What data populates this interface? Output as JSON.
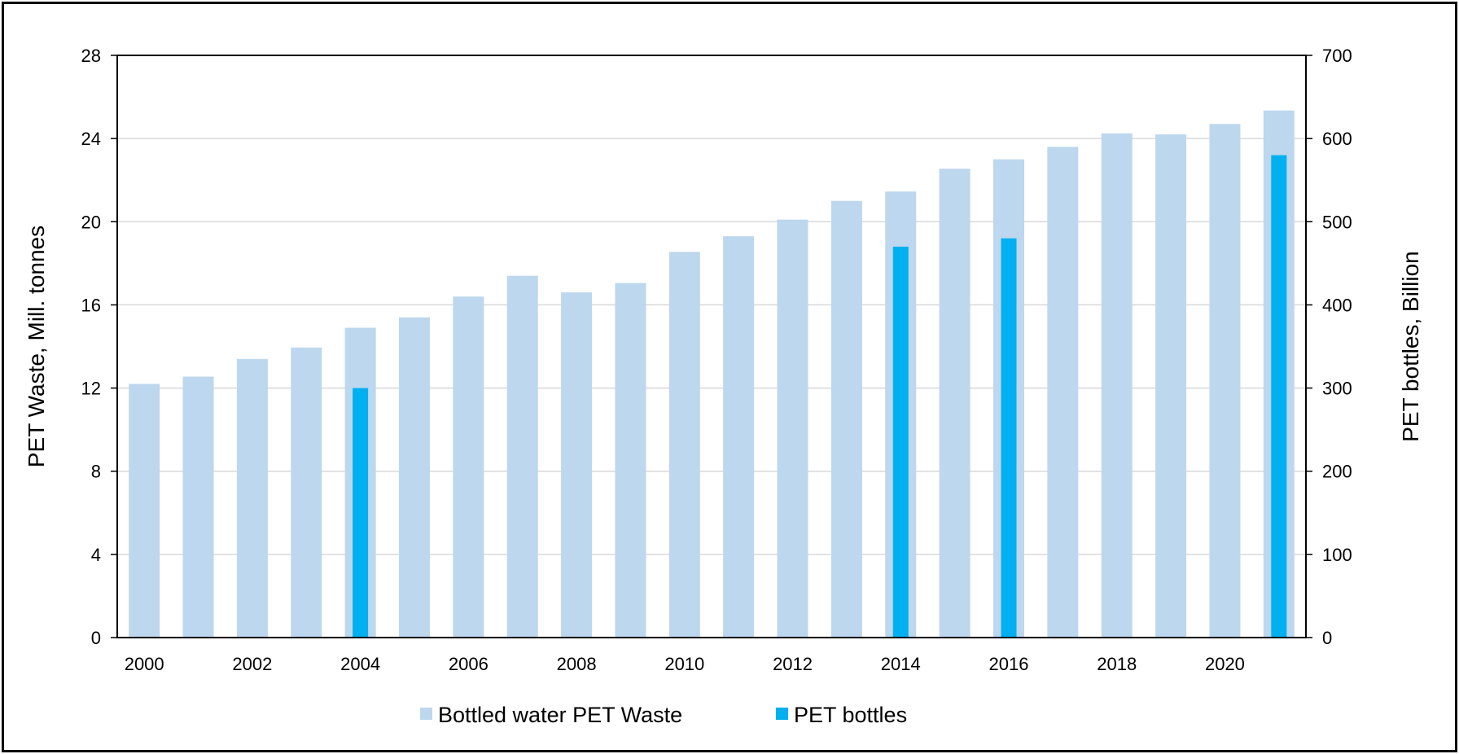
{
  "chart_data": {
    "type": "bar",
    "title": "",
    "x": [
      2000,
      2001,
      2002,
      2003,
      2004,
      2005,
      2006,
      2007,
      2008,
      2009,
      2010,
      2011,
      2012,
      2013,
      2014,
      2015,
      2016,
      2017,
      2018,
      2019,
      2020,
      2021
    ],
    "x_tick_labels": [
      "2000",
      "2002",
      "2004",
      "2006",
      "2008",
      "2010",
      "2012",
      "2014",
      "2016",
      "2018",
      "2020"
    ],
    "series": [
      {
        "name": "Bottled water PET Waste",
        "axis": "left",
        "color": "#BDD7EE",
        "values": [
          12.2,
          12.55,
          13.4,
          13.95,
          14.9,
          15.4,
          16.4,
          17.4,
          16.6,
          17.05,
          18.55,
          19.3,
          20.1,
          21.0,
          21.45,
          22.55,
          23.0,
          23.6,
          24.25,
          24.2,
          24.7,
          25.35
        ]
      },
      {
        "name": "PET bottles",
        "axis": "right",
        "color": "#00B0F0",
        "values": [
          null,
          null,
          null,
          null,
          300,
          null,
          null,
          null,
          null,
          null,
          null,
          null,
          null,
          null,
          470,
          null,
          480,
          null,
          null,
          null,
          null,
          580
        ]
      }
    ],
    "ylabel": "PET Waste, Mill. tonnes",
    "ylim": [
      0,
      28
    ],
    "y_ticks": [
      0,
      4,
      8,
      12,
      16,
      20,
      24,
      28
    ],
    "y2label": "PET bottles, Billion",
    "y2lim": [
      0,
      700
    ],
    "y2_ticks": [
      0,
      100,
      200,
      300,
      400,
      500,
      600,
      700
    ],
    "grid": true,
    "legend_position": "bottom"
  }
}
